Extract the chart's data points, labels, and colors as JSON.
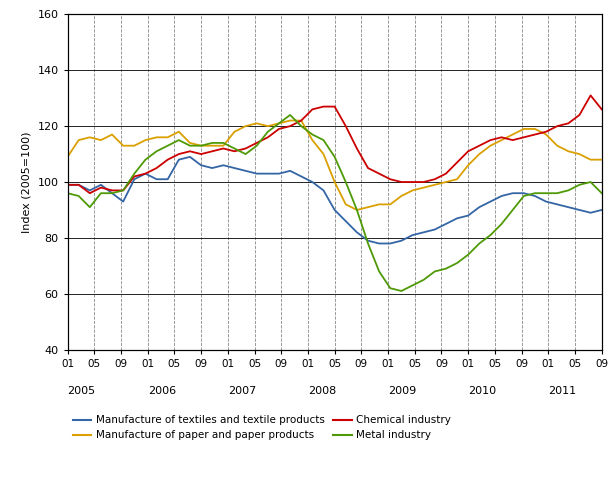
{
  "title": "",
  "ylabel": "Index (2005=100)",
  "ylim": [
    40,
    160
  ],
  "yticks": [
    40,
    60,
    80,
    100,
    120,
    140,
    160
  ],
  "colors": {
    "textiles": "#3465a4",
    "paper": "#daa000",
    "chemical": "#cc0000",
    "metal": "#4e9a06"
  },
  "legend_row1": [
    "Manufacture of textiles and textile products",
    "Manufacture of paper and paper products"
  ],
  "legend_row2": [
    "Chemical industry",
    "Metal industry"
  ],
  "legend_colors_row1": [
    "#3465a4",
    "#daa000"
  ],
  "legend_colors_row2": [
    "#cc0000",
    "#4e9a06"
  ],
  "textiles": [
    99,
    99,
    97,
    99,
    96,
    93,
    101,
    103,
    101,
    101,
    108,
    109,
    106,
    105,
    106,
    105,
    104,
    103,
    103,
    103,
    104,
    102,
    100,
    97,
    90,
    86,
    82,
    79,
    78,
    78,
    79,
    81,
    82,
    83,
    85,
    87,
    88,
    91,
    93,
    95,
    96,
    96,
    95,
    93,
    92,
    91,
    90,
    89,
    90
  ],
  "paper": [
    109,
    115,
    116,
    115,
    117,
    113,
    113,
    115,
    116,
    116,
    118,
    114,
    113,
    113,
    113,
    118,
    120,
    121,
    120,
    121,
    122,
    122,
    115,
    110,
    100,
    92,
    90,
    91,
    92,
    92,
    95,
    97,
    98,
    99,
    100,
    101,
    106,
    110,
    113,
    115,
    117,
    119,
    119,
    117,
    113,
    111,
    110,
    108,
    108
  ],
  "chemical": [
    99,
    99,
    96,
    98,
    97,
    97,
    102,
    103,
    105,
    108,
    110,
    111,
    110,
    111,
    112,
    111,
    112,
    114,
    116,
    119,
    120,
    122,
    126,
    127,
    127,
    120,
    112,
    105,
    103,
    101,
    100,
    100,
    100,
    101,
    103,
    107,
    111,
    113,
    115,
    116,
    115,
    116,
    117,
    118,
    120,
    121,
    124,
    131,
    126
  ],
  "metal": [
    96,
    95,
    91,
    96,
    96,
    97,
    103,
    108,
    111,
    113,
    115,
    113,
    113,
    114,
    114,
    112,
    110,
    113,
    118,
    121,
    124,
    120,
    117,
    115,
    109,
    100,
    90,
    78,
    68,
    62,
    61,
    63,
    65,
    68,
    69,
    71,
    74,
    78,
    81,
    85,
    90,
    95,
    96,
    96,
    96,
    97,
    99,
    100,
    96
  ],
  "n_points": 49,
  "start_year": 2005,
  "end_year": 2011,
  "end_month": 9,
  "tick_months": [
    1,
    5,
    9
  ],
  "years": [
    2005,
    2006,
    2007,
    2008,
    2009,
    2010,
    2011
  ]
}
